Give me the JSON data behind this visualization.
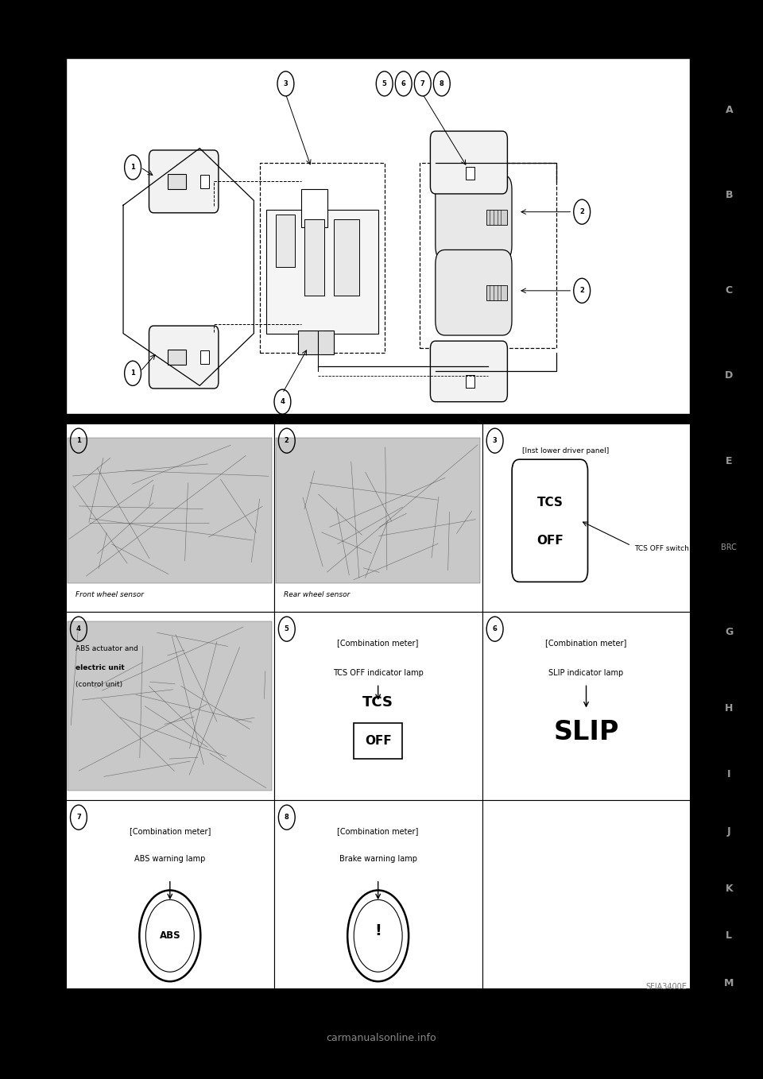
{
  "page_bg": "#000000",
  "content_bg": "#ffffff",
  "right_tabs": [
    "A",
    "B",
    "C",
    "D",
    "E",
    "BRC",
    "G",
    "H",
    "I",
    "J",
    "K",
    "L",
    "M"
  ],
  "diagram_label": "SFIA3400E",
  "watermark": "carmanualsonline.info"
}
